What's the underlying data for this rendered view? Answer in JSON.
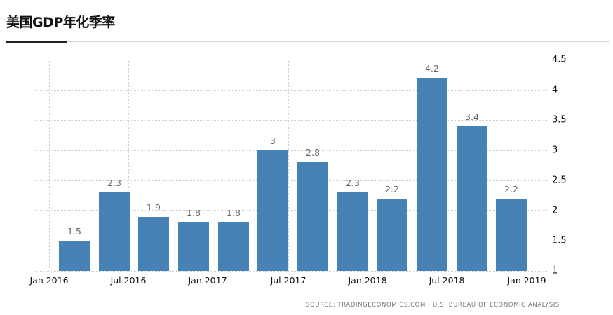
{
  "header": {
    "title": "美国GDP年化季率"
  },
  "source": "SOURCE: TRADINGECONOMICS.COM | U.S. BUREAU OF ECONOMIC ANALYSIS",
  "colors": {
    "bar": "#4682b4",
    "grid": "#cfcfcf",
    "label": "#666666"
  },
  "chart_data": {
    "type": "bar",
    "title": "美国GDP年化季率",
    "xlabel": "",
    "ylabel": "",
    "ylim": [
      1,
      4.5
    ],
    "yticks": [
      1,
      1.5,
      2,
      2.5,
      3,
      3.5,
      4,
      4.5
    ],
    "ytick_labels": [
      "1",
      "1.5",
      "2",
      "2.5",
      "3",
      "3.5",
      "4",
      "4.5"
    ],
    "xtick_labels": [
      "Jan 2016",
      "Jul 2016",
      "Jan 2017",
      "Jul 2017",
      "Jan 2018",
      "Jul 2018",
      "Jan 2019"
    ],
    "categories": [
      "Q1 2016",
      "Q2 2016",
      "Q3 2016",
      "Q4 2016",
      "Q1 2017",
      "Q2 2017",
      "Q3 2017",
      "Q4 2017",
      "Q1 2018",
      "Q2 2018",
      "Q3 2018",
      "Q4 2018"
    ],
    "values": [
      1.5,
      2.3,
      1.9,
      1.8,
      1.8,
      3,
      2.8,
      2.3,
      2.2,
      4.2,
      3.4,
      2.2
    ],
    "value_labels": [
      "1.5",
      "2.3",
      "1.9",
      "1.8",
      "1.8",
      "3",
      "2.8",
      "2.3",
      "2.2",
      "4.2",
      "3.4",
      "2.2"
    ],
    "grid": true,
    "axis_position": "right",
    "legend": "none"
  }
}
